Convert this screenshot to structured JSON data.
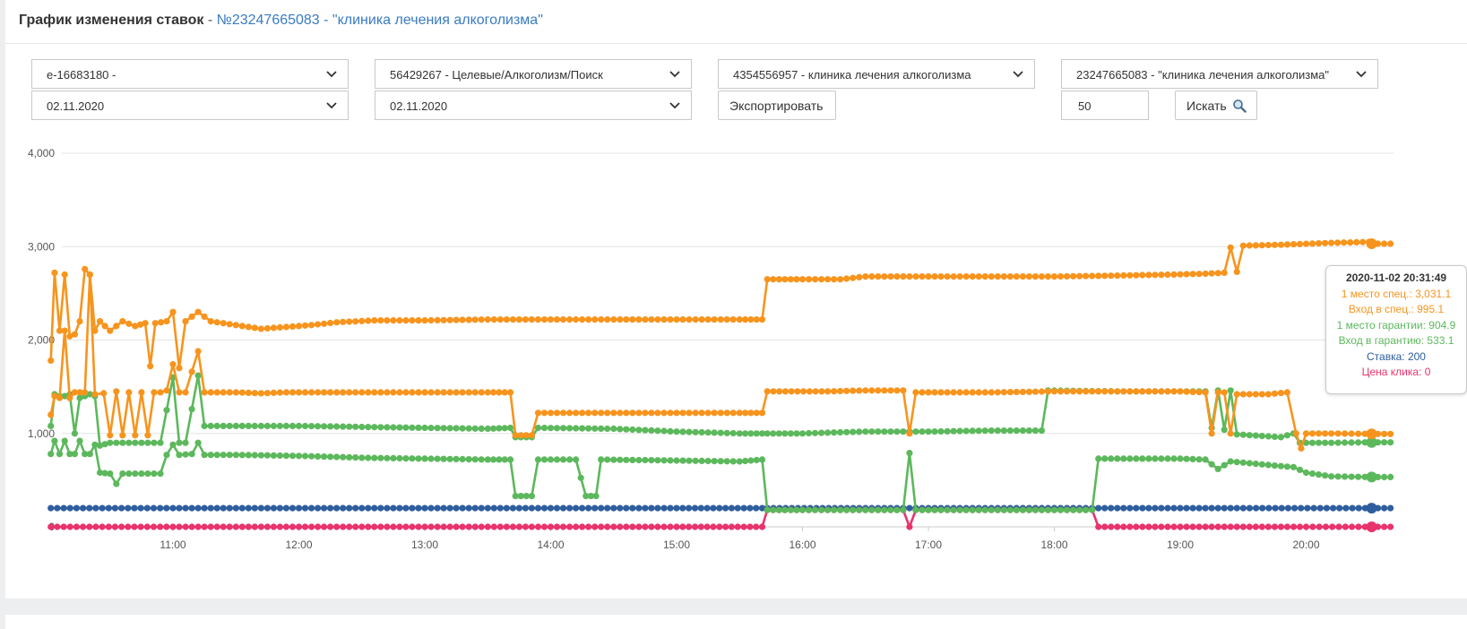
{
  "header": {
    "title_bold": "График изменения ставок",
    "title_sep": " - ",
    "title_link": "№23247665083 - \"клиника лечения алкоголизма\""
  },
  "filters": {
    "account": "e-16683180 -",
    "campaign": "56429267 - Целевые/Алкоголизм/Поиск",
    "group": "4354556957 - клиника лечения алкоголизма",
    "phrase": "23247665083 - \"клиника лечения алкоголизма\"",
    "date_from": "02.11.2020",
    "date_to": "02.11.2020",
    "export_label": "Экспортировать",
    "limit_value": "50",
    "search_label": "Искать"
  },
  "colors": {
    "orange": "#f7941d",
    "green": "#5cb85c",
    "blue": "#2e5e9e",
    "red": "#e8336c",
    "link": "#3a7bc1"
  },
  "tooltip": {
    "time": "2020-11-02 20:31:49",
    "line1": "1 место спец.: 3,031.1",
    "line2": "Вход в спец.: 995.1",
    "line3": "1 место гарантии: 904.9",
    "line4": "Вход в гарантию: 533.1",
    "line5": "Ставка: 200",
    "line6": "Цена клика: 0"
  },
  "chart_data": {
    "type": "line",
    "y_ticks": [
      "0",
      "1,000",
      "2,000",
      "3,000",
      "4,000"
    ],
    "ylim": [
      0,
      4000
    ],
    "x_ticks": [
      "11:00",
      "12:00",
      "13:00",
      "14:00",
      "15:00",
      "16:00",
      "17:00",
      "18:00",
      "19:00",
      "20:00"
    ],
    "x_unit": "hours",
    "xlim": [
      10.15,
      20.8
    ],
    "series": [
      {
        "name": "1 место спец.",
        "color": "#f7941d",
        "points": [
          [
            10.03,
            1780
          ],
          [
            10.06,
            2720
          ],
          [
            10.1,
            2100
          ],
          [
            10.14,
            2700
          ],
          [
            10.18,
            2040
          ],
          [
            10.22,
            2060
          ],
          [
            10.26,
            2200
          ],
          [
            10.3,
            2760
          ],
          [
            10.34,
            2700
          ],
          [
            10.38,
            2100
          ],
          [
            10.42,
            2200
          ],
          [
            10.5,
            2100
          ],
          [
            10.6,
            2200
          ],
          [
            10.7,
            2150
          ],
          [
            10.78,
            2180
          ],
          [
            10.82,
            1720
          ],
          [
            10.86,
            2180
          ],
          [
            10.95,
            2200
          ],
          [
            11.0,
            2300
          ],
          [
            11.05,
            1700
          ],
          [
            11.1,
            2200
          ],
          [
            11.2,
            2300
          ],
          [
            11.3,
            2200
          ],
          [
            11.5,
            2160
          ],
          [
            11.7,
            2120
          ],
          [
            11.9,
            2140
          ],
          [
            12.1,
            2160
          ],
          [
            12.3,
            2190
          ],
          [
            12.6,
            2210
          ],
          [
            13.0,
            2210
          ],
          [
            13.5,
            2220
          ],
          [
            14.0,
            2220
          ],
          [
            14.5,
            2220
          ],
          [
            15.0,
            2220
          ],
          [
            15.5,
            2220
          ],
          [
            15.68,
            2220
          ],
          [
            15.72,
            2650
          ],
          [
            16.0,
            2650
          ],
          [
            16.3,
            2650
          ],
          [
            16.5,
            2680
          ],
          [
            17.0,
            2680
          ],
          [
            17.5,
            2680
          ],
          [
            18.0,
            2680
          ],
          [
            18.5,
            2690
          ],
          [
            18.9,
            2700
          ],
          [
            19.2,
            2710
          ],
          [
            19.35,
            2720
          ],
          [
            19.4,
            2990
          ],
          [
            19.45,
            2730
          ],
          [
            19.5,
            3010
          ],
          [
            19.8,
            3020
          ],
          [
            20.0,
            3030
          ],
          [
            20.2,
            3040
          ],
          [
            20.5,
            3050
          ],
          [
            20.52,
            3031
          ]
        ]
      },
      {
        "name": "Вход в спец.",
        "color": "#f7941d",
        "points": [
          [
            10.03,
            1200
          ],
          [
            10.06,
            1400
          ],
          [
            10.1,
            1380
          ],
          [
            10.14,
            2100
          ],
          [
            10.18,
            1380
          ],
          [
            10.22,
            1440
          ],
          [
            10.3,
            1440
          ],
          [
            10.34,
            2700
          ],
          [
            10.38,
            1420
          ],
          [
            10.45,
            1430
          ],
          [
            10.5,
            980
          ],
          [
            10.55,
            1450
          ],
          [
            10.6,
            980
          ],
          [
            10.65,
            1440
          ],
          [
            10.7,
            980
          ],
          [
            10.75,
            1440
          ],
          [
            10.8,
            980
          ],
          [
            10.85,
            1440
          ],
          [
            10.9,
            1440
          ],
          [
            10.95,
            1460
          ],
          [
            11.0,
            1740
          ],
          [
            11.05,
            1440
          ],
          [
            11.1,
            1440
          ],
          [
            11.2,
            1880
          ],
          [
            11.25,
            1440
          ],
          [
            11.5,
            1440
          ],
          [
            11.7,
            1430
          ],
          [
            11.9,
            1440
          ],
          [
            12.5,
            1440
          ],
          [
            13.0,
            1440
          ],
          [
            13.5,
            1440
          ],
          [
            13.68,
            1440
          ],
          [
            13.72,
            980
          ],
          [
            13.85,
            980
          ],
          [
            13.9,
            1220
          ],
          [
            14.5,
            1220
          ],
          [
            15.0,
            1220
          ],
          [
            15.5,
            1220
          ],
          [
            15.68,
            1220
          ],
          [
            15.72,
            1450
          ],
          [
            16.2,
            1450
          ],
          [
            16.5,
            1460
          ],
          [
            16.8,
            1460
          ],
          [
            16.85,
            1000
          ],
          [
            16.9,
            1440
          ],
          [
            17.5,
            1440
          ],
          [
            18.0,
            1450
          ],
          [
            18.5,
            1450
          ],
          [
            19.0,
            1450
          ],
          [
            19.2,
            1440
          ],
          [
            19.25,
            1000
          ],
          [
            19.3,
            1440
          ],
          [
            19.35,
            1440
          ],
          [
            19.4,
            1000
          ],
          [
            19.45,
            1420
          ],
          [
            19.7,
            1420
          ],
          [
            19.85,
            1440
          ],
          [
            19.92,
            1000
          ],
          [
            19.96,
            840
          ],
          [
            20.0,
            1000
          ],
          [
            20.2,
            1000
          ],
          [
            20.52,
            995
          ]
        ]
      },
      {
        "name": "1 место гарантии",
        "color": "#5cb85c",
        "points": [
          [
            10.03,
            1080
          ],
          [
            10.06,
            1420
          ],
          [
            10.1,
            1400
          ],
          [
            10.14,
            1400
          ],
          [
            10.18,
            1420
          ],
          [
            10.22,
            1000
          ],
          [
            10.26,
            1380
          ],
          [
            10.3,
            1400
          ],
          [
            10.34,
            1420
          ],
          [
            10.38,
            1400
          ],
          [
            10.42,
            870
          ],
          [
            10.5,
            900
          ],
          [
            10.7,
            900
          ],
          [
            10.8,
            900
          ],
          [
            10.9,
            900
          ],
          [
            11.0,
            1600
          ],
          [
            11.05,
            900
          ],
          [
            11.1,
            900
          ],
          [
            11.2,
            1620
          ],
          [
            11.25,
            1080
          ],
          [
            11.5,
            1080
          ],
          [
            12.0,
            1080
          ],
          [
            12.5,
            1070
          ],
          [
            13.0,
            1060
          ],
          [
            13.5,
            1050
          ],
          [
            13.68,
            1060
          ],
          [
            13.72,
            960
          ],
          [
            13.85,
            960
          ],
          [
            13.9,
            1060
          ],
          [
            14.5,
            1050
          ],
          [
            15.0,
            1020
          ],
          [
            15.5,
            1000
          ],
          [
            15.68,
            1000
          ],
          [
            15.72,
            1000
          ],
          [
            16.0,
            1000
          ],
          [
            16.5,
            1020
          ],
          [
            17.0,
            1020
          ],
          [
            17.5,
            1030
          ],
          [
            17.9,
            1030
          ],
          [
            17.95,
            1460
          ],
          [
            18.5,
            1450
          ],
          [
            19.0,
            1450
          ],
          [
            19.2,
            1450
          ],
          [
            19.25,
            1060
          ],
          [
            19.3,
            1460
          ],
          [
            19.35,
            1040
          ],
          [
            19.4,
            1460
          ],
          [
            19.45,
            990
          ],
          [
            19.8,
            960
          ],
          [
            19.9,
            1000
          ],
          [
            19.95,
            900
          ],
          [
            20.2,
            900
          ],
          [
            20.52,
            905
          ]
        ]
      },
      {
        "name": "Вход в гарантию",
        "color": "#5cb85c",
        "points": [
          [
            10.03,
            780
          ],
          [
            10.06,
            920
          ],
          [
            10.1,
            780
          ],
          [
            10.14,
            920
          ],
          [
            10.18,
            780
          ],
          [
            10.22,
            780
          ],
          [
            10.26,
            920
          ],
          [
            10.3,
            780
          ],
          [
            10.34,
            780
          ],
          [
            10.38,
            880
          ],
          [
            10.42,
            580
          ],
          [
            10.5,
            570
          ],
          [
            10.55,
            460
          ],
          [
            10.6,
            570
          ],
          [
            10.7,
            570
          ],
          [
            10.9,
            570
          ],
          [
            10.95,
            770
          ],
          [
            11.0,
            880
          ],
          [
            11.05,
            770
          ],
          [
            11.15,
            780
          ],
          [
            11.2,
            900
          ],
          [
            11.25,
            770
          ],
          [
            11.5,
            770
          ],
          [
            12.0,
            760
          ],
          [
            12.5,
            740
          ],
          [
            13.0,
            730
          ],
          [
            13.5,
            720
          ],
          [
            13.68,
            720
          ],
          [
            13.72,
            330
          ],
          [
            13.85,
            330
          ],
          [
            13.9,
            720
          ],
          [
            14.2,
            720
          ],
          [
            14.28,
            330
          ],
          [
            14.36,
            330
          ],
          [
            14.4,
            720
          ],
          [
            15.0,
            710
          ],
          [
            15.5,
            700
          ],
          [
            15.68,
            720
          ],
          [
            15.72,
            180
          ],
          [
            16.0,
            180
          ],
          [
            16.8,
            180
          ],
          [
            16.85,
            790
          ],
          [
            16.9,
            180
          ],
          [
            17.5,
            180
          ],
          [
            18.0,
            180
          ],
          [
            18.3,
            180
          ],
          [
            18.35,
            730
          ],
          [
            18.5,
            730
          ],
          [
            19.0,
            730
          ],
          [
            19.2,
            720
          ],
          [
            19.3,
            620
          ],
          [
            19.4,
            700
          ],
          [
            19.8,
            650
          ],
          [
            19.9,
            640
          ],
          [
            20.0,
            580
          ],
          [
            20.2,
            540
          ],
          [
            20.52,
            533
          ]
        ]
      },
      {
        "name": "Ставка",
        "color": "#2e5e9e",
        "points": [
          [
            10.03,
            200
          ],
          [
            11.0,
            200
          ],
          [
            12.0,
            200
          ],
          [
            13.0,
            200
          ],
          [
            14.0,
            200
          ],
          [
            15.0,
            200
          ],
          [
            15.68,
            200
          ],
          [
            15.72,
            200
          ],
          [
            16.5,
            200
          ],
          [
            17.5,
            200
          ],
          [
            18.3,
            200
          ],
          [
            18.35,
            200
          ],
          [
            19.5,
            200
          ],
          [
            20.52,
            200
          ]
        ]
      },
      {
        "name": "Цена клика",
        "color": "#e8336c",
        "points": [
          [
            10.03,
            0
          ],
          [
            11.0,
            0
          ],
          [
            12.0,
            0
          ],
          [
            13.0,
            0
          ],
          [
            13.5,
            0
          ],
          [
            14.0,
            0
          ],
          [
            15.0,
            0
          ],
          [
            15.68,
            0
          ],
          [
            15.72,
            180
          ],
          [
            16.0,
            180
          ],
          [
            16.8,
            180
          ],
          [
            16.85,
            0
          ],
          [
            16.9,
            180
          ],
          [
            17.5,
            180
          ],
          [
            18.3,
            180
          ],
          [
            18.35,
            0
          ],
          [
            19.0,
            0
          ],
          [
            20.0,
            0
          ],
          [
            20.52,
            0
          ]
        ]
      }
    ]
  }
}
